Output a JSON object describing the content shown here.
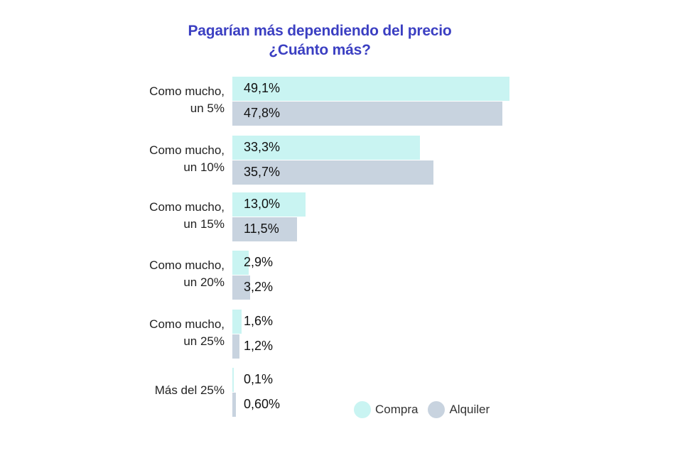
{
  "title": {
    "line1": "Pagarían más dependiendo del precio",
    "line2": "¿Cuánto más?"
  },
  "legend": {
    "compra": "Compra",
    "alquiler": "Alquiler"
  },
  "colors": {
    "compra": "#c9f4f2",
    "alquiler": "#c8d3df",
    "title": "#3b3fc2"
  },
  "groups": [
    {
      "label1": "Como mucho,",
      "label2": "un 5%",
      "compra": "49,1%",
      "alquiler": "47,8%"
    },
    {
      "label1": "Como mucho,",
      "label2": "un 10%",
      "compra": "33,3%",
      "alquiler": "35,7%"
    },
    {
      "label1": "Como mucho,",
      "label2": "un 15%",
      "compra": "13,0%",
      "alquiler": "11,5%"
    },
    {
      "label1": "Como mucho,",
      "label2": "un 20%",
      "compra": "2,9%",
      "alquiler": "3,2%"
    },
    {
      "label1": "Como mucho,",
      "label2": "un 25%",
      "compra": "1,6%",
      "alquiler": "1,2%"
    },
    {
      "label1": "Más del 25%",
      "label2": "",
      "compra": "0,1%",
      "alquiler": "0,60%"
    }
  ],
  "chart_data": {
    "type": "bar",
    "orientation": "horizontal",
    "title": "Pagarían más dependiendo del precio ¿Cuánto más?",
    "categories": [
      "Como mucho, un 5%",
      "Como mucho, un 10%",
      "Como mucho, un 15%",
      "Como mucho, un 20%",
      "Como mucho, un 25%",
      "Más del 25%"
    ],
    "series": [
      {
        "name": "Compra",
        "color": "#c9f4f2",
        "values": [
          49.1,
          33.3,
          13.0,
          2.9,
          1.6,
          0.1
        ]
      },
      {
        "name": "Alquiler",
        "color": "#c8d3df",
        "values": [
          47.8,
          35.7,
          11.5,
          3.2,
          1.2,
          0.6
        ]
      }
    ],
    "xlabel": "",
    "ylabel": "",
    "grid": false,
    "legend_position": "bottom-right",
    "data_labels": true,
    "unit": "%"
  }
}
